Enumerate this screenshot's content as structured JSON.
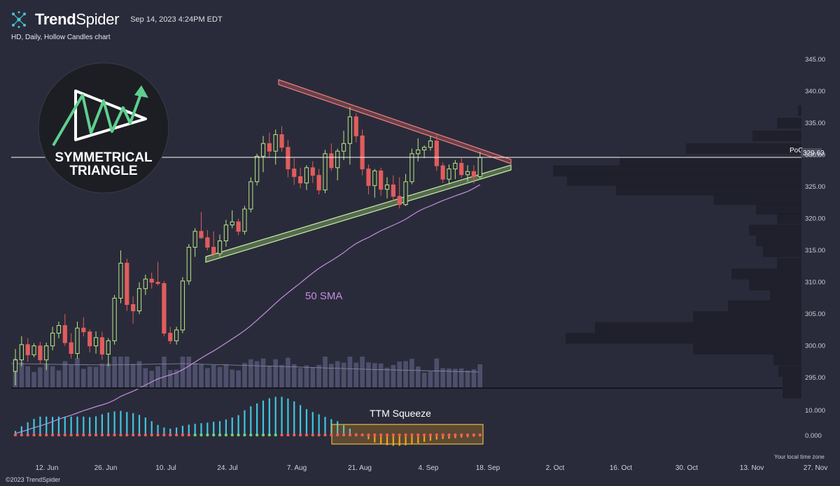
{
  "header": {
    "brand_bold": "Trend",
    "brand_light": "Spider",
    "timestamp": "Sep 14, 2023 4:24PM EDT",
    "subtitle": "HD, Daily, Hollow Candles chart"
  },
  "footer": {
    "copyright": "©2023 TrendSpider",
    "timezone_note": "Your local time zone"
  },
  "badge": {
    "line1": "SYMMETRICAL",
    "line2": "TRIANGLE"
  },
  "colors": {
    "background": "#2a2b3a",
    "bull": "#b8e986",
    "bear": "#e05d5d",
    "sma": "#c48ee0",
    "resistance": "#e06666",
    "support": "#a8e07a",
    "hist_up": "#3fc6e0",
    "hist_down": "#f4a21a",
    "dot_red": "#f25b5b",
    "dot_green": "#6fce7c"
  },
  "chart_data": [
    {
      "type": "candlestick",
      "title": "HD, Daily, Hollow Candles chart",
      "y_axis": {
        "ticks": [
          "345.00",
          "340.00",
          "335.00",
          "330.00",
          "325.00",
          "320.00",
          "315.00",
          "310.00",
          "305.00",
          "300.00",
          "295.00"
        ],
        "range": [
          291,
          347
        ]
      },
      "x_axis": {
        "ticks": [
          "12. Jun",
          "26. Jun",
          "10. Jul",
          "24. Jul",
          "7. Aug",
          "21. Aug",
          "4. Sep",
          "18. Sep",
          "2. Oct",
          "16. Oct",
          "30. Oct",
          "13. Nov",
          "27. Nov"
        ]
      },
      "candles": [
        [
          296.0,
          299.5,
          293.8,
          297.8
        ],
        [
          297.8,
          301.5,
          296.8,
          300.2
        ],
        [
          300.2,
          301.2,
          297.5,
          298.6
        ],
        [
          298.6,
          300.4,
          298.2,
          300.0
        ],
        [
          300.0,
          300.6,
          297.2,
          297.8
        ],
        [
          297.8,
          300.5,
          296.2,
          300.0
        ],
        [
          300.0,
          303.0,
          299.3,
          302.0
        ],
        [
          302.0,
          303.8,
          301.2,
          303.2
        ],
        [
          303.2,
          305.0,
          300.0,
          300.5
        ],
        [
          300.5,
          302.0,
          298.0,
          298.8
        ],
        [
          298.8,
          303.8,
          298.0,
          302.8
        ],
        [
          302.8,
          304.5,
          301.5,
          302.2
        ],
        [
          302.2,
          302.6,
          299.0,
          300.0
        ],
        [
          300.0,
          302.3,
          298.8,
          301.3
        ],
        [
          301.3,
          302.2,
          297.8,
          298.7
        ],
        [
          298.7,
          301.2,
          296.8,
          300.8
        ],
        [
          300.8,
          308.0,
          300.2,
          307.5
        ],
        [
          307.5,
          315.0,
          306.7,
          313.0
        ],
        [
          313.0,
          313.7,
          305.5,
          306.5
        ],
        [
          306.5,
          307.8,
          303.5,
          305.5
        ],
        [
          305.5,
          310.0,
          305.0,
          309.0
        ],
        [
          309.0,
          311.2,
          308.0,
          310.5
        ],
        [
          310.5,
          311.5,
          309.0,
          310.0
        ],
        [
          310.0,
          313.2,
          309.5,
          309.8
        ],
        [
          309.8,
          310.2,
          301.5,
          302.0
        ],
        [
          302.0,
          303.0,
          300.3,
          300.8
        ],
        [
          300.8,
          303.0,
          300.2,
          302.5
        ],
        [
          302.5,
          310.8,
          302.0,
          310.2
        ],
        [
          310.2,
          316.0,
          309.6,
          315.5
        ],
        [
          315.5,
          318.5,
          314.0,
          318.0
        ],
        [
          318.0,
          321.0,
          316.8,
          317.0
        ],
        [
          317.0,
          318.2,
          315.0,
          315.5
        ],
        [
          315.5,
          318.0,
          314.0,
          314.5
        ],
        [
          314.5,
          317.5,
          314.0,
          316.5
        ],
        [
          316.5,
          319.8,
          315.6,
          319.0
        ],
        [
          319.0,
          321.3,
          318.5,
          319.5
        ],
        [
          319.5,
          320.0,
          317.4,
          318.0
        ],
        [
          318.0,
          322.0,
          317.5,
          321.5
        ],
        [
          321.5,
          326.5,
          321.0,
          325.8
        ],
        [
          325.8,
          330.2,
          325.2,
          329.8
        ],
        [
          329.8,
          333.0,
          327.3,
          331.8
        ],
        [
          331.8,
          333.5,
          329.7,
          330.6
        ],
        [
          330.6,
          334.0,
          328.5,
          333.2
        ],
        [
          333.2,
          334.5,
          330.5,
          331.2
        ],
        [
          331.2,
          332.4,
          326.5,
          327.8
        ],
        [
          327.8,
          329.5,
          325.3,
          326.6
        ],
        [
          326.6,
          328.0,
          324.8,
          325.6
        ],
        [
          325.6,
          328.4,
          324.5,
          328.0
        ],
        [
          328.0,
          329.0,
          325.6,
          326.8
        ],
        [
          326.8,
          327.8,
          323.8,
          324.5
        ],
        [
          324.5,
          330.8,
          324.0,
          330.2
        ],
        [
          330.2,
          331.8,
          327.5,
          328.0
        ],
        [
          328.0,
          331.0,
          326.0,
          330.6
        ],
        [
          330.6,
          333.8,
          329.2,
          331.8
        ],
        [
          331.8,
          337.5,
          328.5,
          336.0
        ],
        [
          336.0,
          336.6,
          332.0,
          333.0
        ],
        [
          333.0,
          334.0,
          326.8,
          327.8
        ],
        [
          327.8,
          328.5,
          323.8,
          325.2
        ],
        [
          325.2,
          327.8,
          323.3,
          327.5
        ],
        [
          327.5,
          328.0,
          323.6,
          324.6
        ],
        [
          324.6,
          326.5,
          323.2,
          325.3
        ],
        [
          325.3,
          326.8,
          322.8,
          323.5
        ],
        [
          323.5,
          326.5,
          321.6,
          322.2
        ],
        [
          322.2,
          327.0,
          322.0,
          325.8
        ],
        [
          325.8,
          331.0,
          325.4,
          330.2
        ],
        [
          330.2,
          332.6,
          329.0,
          330.8
        ],
        [
          330.8,
          331.5,
          329.5,
          331.2
        ],
        [
          331.2,
          333.0,
          330.7,
          332.2
        ],
        [
          332.2,
          333.2,
          327.5,
          328.3
        ],
        [
          328.3,
          328.8,
          325.6,
          326.2
        ],
        [
          326.2,
          328.5,
          325.4,
          327.8
        ],
        [
          327.8,
          329.2,
          326.2,
          328.7
        ],
        [
          328.7,
          329.5,
          326.4,
          326.9
        ],
        [
          326.9,
          328.4,
          325.8,
          327.4
        ],
        [
          327.4,
          328.4,
          325.5,
          326.6
        ],
        [
          326.6,
          330.5,
          326.3,
          329.6
        ]
      ],
      "poc": {
        "label": "PoC",
        "value": "329.63"
      },
      "annotation": "50 SMA"
    },
    {
      "type": "bar",
      "title": "TTM Squeeze",
      "y_axis": {
        "ticks": [
          "10.000",
          "0.000"
        ]
      },
      "values": [
        1.4,
        3.0,
        4.4,
        5.6,
        6.4,
        6.4,
        6.3,
        6.4,
        6.4,
        6.4,
        6.4,
        6.4,
        6.2,
        6.5,
        7.2,
        7.8,
        8.2,
        8.4,
        8.0,
        7.6,
        7.0,
        6.1,
        4.8,
        3.5,
        2.6,
        2.2,
        2.6,
        3.2,
        3.6,
        3.9,
        4.1,
        4.3,
        4.6,
        4.8,
        5.4,
        6.1,
        6.9,
        8.6,
        10.0,
        11.0,
        12.0,
        12.8,
        13.3,
        13.3,
        12.7,
        11.7,
        10.4,
        9.0,
        8.0,
        7.2,
        6.3,
        5.5,
        4.8,
        3.4,
        2.2,
        0.6,
        -0.4,
        -1.5,
        -2.6,
        -3.3,
        -3.6,
        -3.8,
        -3.8,
        -3.6,
        -3.3,
        -2.9,
        -2.4,
        -2.0,
        -1.6,
        -1.4,
        -1.3,
        -1.1,
        -0.9,
        -0.8,
        -0.6,
        -0.5
      ],
      "squeeze_dots": [
        "red",
        "red",
        "red",
        "red",
        "red",
        "red",
        "red",
        "red",
        "red",
        "red",
        "red",
        "red",
        "red",
        "red",
        "red",
        "red",
        "red",
        "red",
        "red",
        "red",
        "red",
        "red",
        "red",
        "red",
        "red",
        "red",
        "red",
        "red",
        "red",
        "green",
        "green",
        "green",
        "green",
        "green",
        "green",
        "green",
        "green",
        "green",
        "green",
        "green",
        "green",
        "green",
        "green",
        "red",
        "red",
        "red",
        "red",
        "red",
        "red",
        "red",
        "red",
        "red",
        "red",
        "red",
        "red",
        "red",
        "red",
        "red",
        "red",
        "red",
        "red",
        "red",
        "red",
        "red",
        "red",
        "red",
        "red",
        "red",
        "red",
        "red",
        "red",
        "red",
        "red",
        "red",
        "red",
        "red"
      ]
    }
  ]
}
